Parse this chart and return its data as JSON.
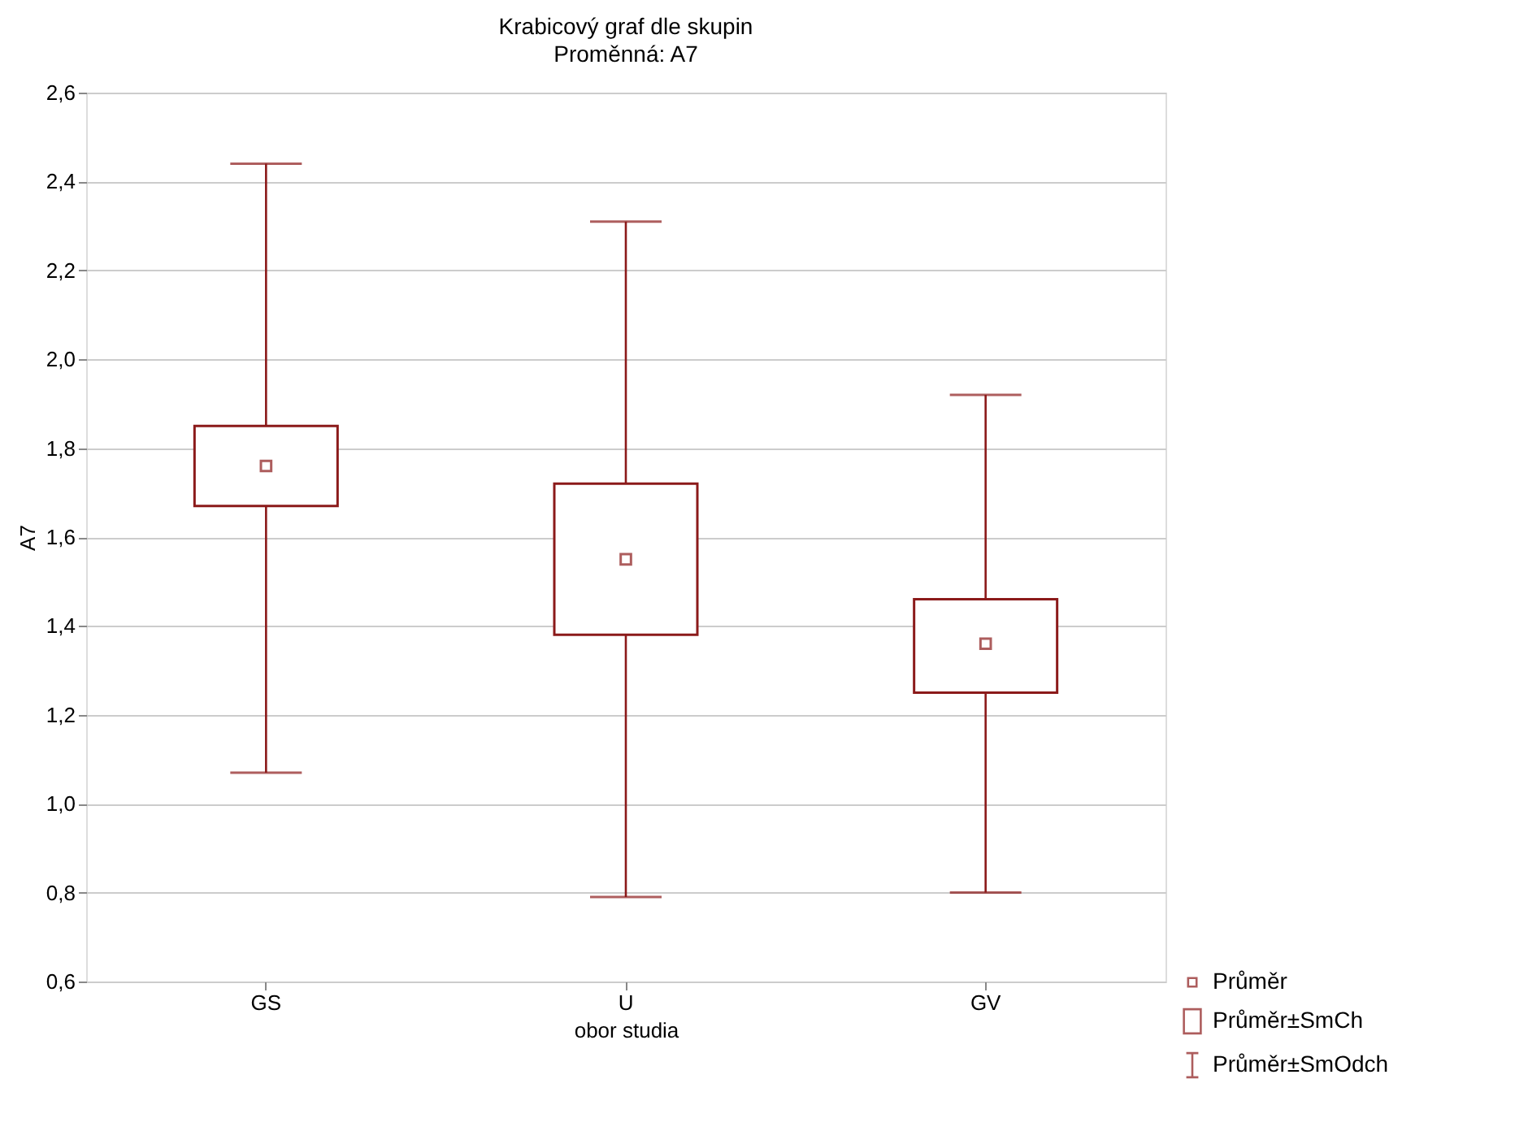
{
  "chart_data": {
    "type": "box",
    "title": "Krabicový graf dle skupin",
    "subtitle": "Proměnná: A7",
    "xlabel": "obor studia",
    "ylabel": "A7",
    "categories": [
      "GS",
      "U",
      "GV"
    ],
    "color": "#8b1a1a",
    "boxes": [
      {
        "low": 1.07,
        "q1": 1.67,
        "median": 1.76,
        "q3": 1.85,
        "high": 2.44
      },
      {
        "low": 0.79,
        "q1": 1.38,
        "median": 1.55,
        "q3": 1.72,
        "high": 2.31
      },
      {
        "low": 0.8,
        "q1": 1.25,
        "median": 1.36,
        "q3": 1.46,
        "high": 1.92
      }
    ],
    "ylim": [
      0.6,
      2.6
    ],
    "yticks": [
      {
        "value": 0.6,
        "label": "0,6"
      },
      {
        "value": 0.8,
        "label": "0,8"
      },
      {
        "value": 1.0,
        "label": "1,0"
      },
      {
        "value": 1.2,
        "label": "1,2"
      },
      {
        "value": 1.4,
        "label": "1,4"
      },
      {
        "value": 1.6,
        "label": "1,6"
      },
      {
        "value": 1.8,
        "label": "1,8"
      },
      {
        "value": 2.0,
        "label": "2,0"
      },
      {
        "value": 2.2,
        "label": "2,2"
      },
      {
        "value": 2.4,
        "label": "2,4"
      },
      {
        "value": 2.6,
        "label": "2,6"
      }
    ],
    "grid": "y",
    "annotations": [
      "Průměr",
      "Průměr±SmCh",
      "Průměr±SmOdch"
    ]
  }
}
